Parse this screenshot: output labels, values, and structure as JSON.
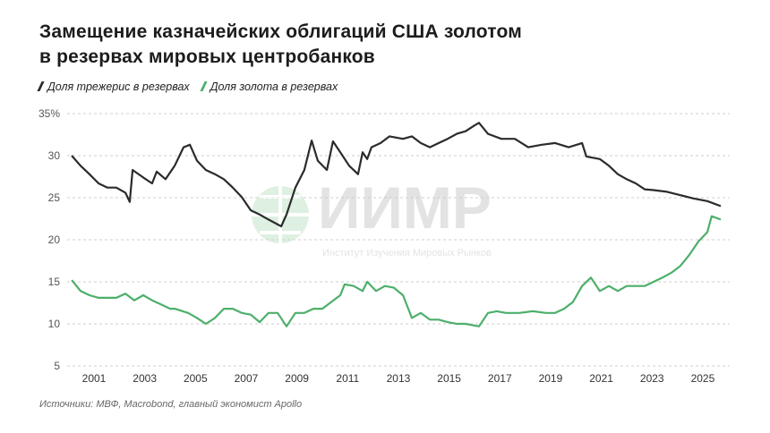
{
  "title_lines": [
    "Замещение казначейских облигаций США золотом",
    "в резервах мировых центробанков"
  ],
  "source": "Источники: МВФ, Macrobond, главный экономист Apollo",
  "watermark": {
    "logo": "ИИМР",
    "subtitle": "Институт Изучения Мировых Рынков"
  },
  "chart_data": {
    "type": "line",
    "title": "Замещение казначейских облигаций США золотом в резервах мировых центробанков",
    "ylim": [
      5,
      35
    ],
    "yticks": [
      5,
      10,
      15,
      20,
      25,
      30,
      35
    ],
    "ytick_labels": [
      "5",
      "10",
      "15",
      "20",
      "25",
      "30",
      "35%"
    ],
    "xticks": [
      2001,
      2003,
      2005,
      2007,
      2009,
      2011,
      2013,
      2015,
      2017,
      2019,
      2021,
      2023,
      2025
    ],
    "xlim": [
      2000,
      2025.8
    ],
    "grid": "horizontal dashed",
    "legend_placement": "top-left",
    "series": [
      {
        "name": "Доля трежерис в резервах",
        "color": "#2b2b2b",
        "x": [
          2000.12,
          2000.47,
          2000.82,
          2001.18,
          2001.53,
          2001.88,
          2002.24,
          2002.41,
          2002.52,
          2002.94,
          2003.29,
          2003.47,
          2003.82,
          2004.18,
          2004.53,
          2004.78,
          2005.06,
          2005.41,
          2005.77,
          2006.12,
          2006.47,
          2006.82,
          2007.18,
          2007.53,
          2007.88,
          2008.38,
          2008.59,
          2008.94,
          2009.29,
          2009.58,
          2009.82,
          2010.18,
          2010.42,
          2010.71,
          2011.06,
          2011.41,
          2011.59,
          2011.77,
          2011.94,
          2012.3,
          2012.65,
          2013.18,
          2013.53,
          2013.88,
          2014.24,
          2014.59,
          2014.94,
          2015.3,
          2015.65,
          2016.0,
          2016.18,
          2016.53,
          2017.06,
          2017.59,
          2018.12,
          2018.65,
          2019.18,
          2019.71,
          2020.24,
          2020.41,
          2020.94,
          2021.3,
          2021.65,
          2022.0,
          2022.36,
          2022.71,
          2023.06,
          2023.59,
          2024.12,
          2024.65,
          2025.18,
          2025.71
        ],
        "values": [
          30.0,
          28.8,
          27.8,
          26.7,
          26.2,
          26.2,
          25.6,
          24.5,
          28.3,
          27.4,
          26.7,
          28.1,
          27.2,
          28.8,
          31.0,
          31.3,
          29.4,
          28.3,
          27.8,
          27.2,
          26.2,
          25.1,
          23.5,
          23.0,
          22.4,
          21.6,
          23.0,
          26.2,
          28.3,
          31.8,
          29.4,
          28.3,
          31.7,
          30.4,
          28.8,
          27.8,
          30.4,
          29.6,
          31.0,
          31.5,
          32.3,
          32.0,
          32.3,
          31.5,
          31.0,
          31.5,
          32.0,
          32.6,
          32.9,
          33.6,
          33.9,
          32.6,
          32.0,
          32.0,
          31.0,
          31.3,
          31.5,
          31.0,
          31.5,
          29.9,
          29.6,
          28.8,
          27.8,
          27.2,
          26.7,
          26.0,
          25.9,
          25.7,
          25.3,
          24.9,
          24.6,
          24.0
        ]
      },
      {
        "name": "Доля золота в резервах",
        "color": "#4caf6a",
        "x": [
          2000.12,
          2000.47,
          2000.82,
          2001.18,
          2001.53,
          2001.88,
          2002.24,
          2002.59,
          2002.94,
          2003.29,
          2003.65,
          2004.0,
          2004.18,
          2004.71,
          2005.06,
          2005.41,
          2005.77,
          2006.12,
          2006.47,
          2006.82,
          2007.18,
          2007.53,
          2007.88,
          2008.24,
          2008.59,
          2008.94,
          2009.29,
          2009.65,
          2010.0,
          2010.35,
          2010.71,
          2010.88,
          2011.24,
          2011.59,
          2011.77,
          2012.12,
          2012.47,
          2012.82,
          2013.18,
          2013.53,
          2013.88,
          2014.24,
          2014.59,
          2014.94,
          2015.3,
          2015.65,
          2016.18,
          2016.53,
          2016.88,
          2017.24,
          2017.77,
          2018.3,
          2018.82,
          2019.18,
          2019.53,
          2019.88,
          2020.24,
          2020.59,
          2020.94,
          2021.3,
          2021.65,
          2022.0,
          2022.36,
          2022.71,
          2023.06,
          2023.41,
          2023.77,
          2024.12,
          2024.47,
          2024.83,
          2025.18,
          2025.35,
          2025.71
        ],
        "values": [
          15.2,
          13.9,
          13.4,
          13.1,
          13.1,
          13.1,
          13.6,
          12.8,
          13.4,
          12.8,
          12.3,
          11.8,
          11.8,
          11.3,
          10.7,
          10.0,
          10.7,
          11.8,
          11.8,
          11.3,
          11.1,
          10.2,
          11.3,
          11.3,
          9.7,
          11.3,
          11.3,
          11.8,
          11.8,
          12.6,
          13.4,
          14.7,
          14.5,
          13.9,
          15.0,
          13.9,
          14.5,
          14.3,
          13.4,
          10.7,
          11.3,
          10.5,
          10.5,
          10.2,
          10.0,
          10.0,
          9.7,
          11.3,
          11.5,
          11.3,
          11.3,
          11.5,
          11.3,
          11.3,
          11.8,
          12.6,
          14.5,
          15.5,
          13.9,
          14.5,
          13.9,
          14.5,
          14.5,
          14.5,
          15.0,
          15.5,
          16.1,
          16.9,
          18.2,
          19.8,
          20.9,
          22.8,
          22.4
        ]
      }
    ]
  }
}
